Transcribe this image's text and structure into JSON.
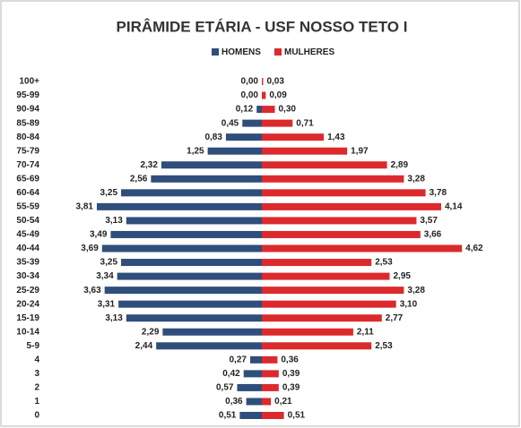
{
  "chart_data": {
    "type": "pyramid",
    "title": "PIRÂMIDE ETÁRIA - USF NOSSO TETO I",
    "categories": [
      "100+",
      "95-99",
      "90-94",
      "85-89",
      "80-84",
      "75-79",
      "70-74",
      "65-69",
      "60-64",
      "55-59",
      "50-54",
      "45-49",
      "40-44",
      "35-39",
      "30-34",
      "25-29",
      "20-24",
      "15-19",
      "10-14",
      "5-9",
      "4",
      "3",
      "2",
      "1",
      "0"
    ],
    "series": [
      {
        "name": "HOMENS",
        "color": "#2f4e7c",
        "side": "left",
        "values": [
          0.0,
          0.0,
          0.12,
          0.45,
          0.83,
          1.25,
          2.32,
          2.56,
          3.25,
          3.81,
          3.13,
          3.49,
          3.69,
          3.25,
          3.34,
          3.63,
          3.31,
          3.13,
          2.29,
          2.44,
          0.27,
          0.42,
          0.57,
          0.36,
          0.51
        ],
        "value_labels": [
          "0,00",
          "0,00",
          "0,12",
          "0,45",
          "0,83",
          "1,25",
          "2,32",
          "2,56",
          "3,25",
          "3,81",
          "3,13",
          "3,49",
          "3,69",
          "3,25",
          "3,34",
          "3,63",
          "3,31",
          "3,13",
          "2,29",
          "2,44",
          "0,27",
          "0,42",
          "0,57",
          "0,36",
          "0,51"
        ]
      },
      {
        "name": "MULHERES",
        "color": "#dc2a2c",
        "side": "right",
        "values": [
          0.03,
          0.09,
          0.3,
          0.71,
          1.43,
          1.97,
          2.89,
          3.28,
          3.78,
          4.14,
          3.57,
          3.66,
          4.62,
          2.53,
          2.95,
          3.28,
          3.1,
          2.77,
          2.11,
          2.53,
          0.36,
          0.39,
          0.39,
          0.21,
          0.51
        ],
        "value_labels": [
          "0,03",
          "0,09",
          "0,30",
          "0,71",
          "1,43",
          "1,97",
          "2,89",
          "3,28",
          "3,78",
          "4,14",
          "3,57",
          "3,66",
          "4,62",
          "2,53",
          "2,95",
          "3,28",
          "3,10",
          "2,77",
          "2,11",
          "2,53",
          "0,36",
          "0,39",
          "0,39",
          "0,21",
          "0,51"
        ]
      }
    ]
  }
}
